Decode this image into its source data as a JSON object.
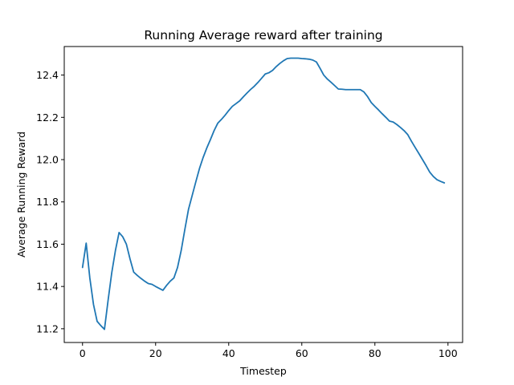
{
  "chart_data": {
    "type": "line",
    "title": "Running Average reward after training",
    "xlabel": "Timestep",
    "ylabel": "Average Running Reward",
    "xlim": [
      -5,
      104
    ],
    "ylim": [
      11.135,
      12.535
    ],
    "xticks": [
      0,
      20,
      40,
      60,
      80,
      100
    ],
    "yticks": [
      11.2,
      11.4,
      11.6,
      11.8,
      12.0,
      12.2,
      12.4
    ],
    "xtick_labels": [
      "0",
      "20",
      "40",
      "60",
      "80",
      "100"
    ],
    "ytick_labels": [
      "11.2",
      "11.4",
      "11.6",
      "11.8",
      "12.0",
      "12.2",
      "12.4"
    ],
    "grid": false,
    "line_color": "#1f77b4",
    "series": [
      {
        "x": [
          0,
          1,
          2,
          3,
          4,
          5,
          6,
          7,
          8,
          9,
          10,
          11,
          12,
          13,
          14,
          15,
          16,
          17,
          18,
          19,
          20,
          21,
          22,
          23,
          24,
          25,
          26,
          27,
          28,
          29,
          30,
          31,
          32,
          33,
          34,
          35,
          36,
          37,
          38,
          39,
          40,
          41,
          42,
          43,
          44,
          45,
          46,
          47,
          48,
          49,
          50,
          51,
          52,
          53,
          54,
          55,
          56,
          57,
          58,
          59,
          60,
          61,
          62,
          63,
          64,
          65,
          66,
          67,
          68,
          69,
          70,
          71,
          72,
          73,
          74,
          75,
          76,
          77,
          78,
          79,
          80,
          81,
          82,
          83,
          84,
          85,
          86,
          87,
          88,
          89,
          90,
          91,
          92,
          93,
          94,
          95,
          96,
          97,
          98,
          99
        ],
        "values": [
          11.49,
          11.605,
          11.44,
          11.315,
          11.235,
          11.215,
          11.197,
          11.335,
          11.465,
          11.57,
          11.655,
          11.635,
          11.6,
          11.53,
          11.468,
          11.452,
          11.438,
          11.425,
          11.414,
          11.41,
          11.4,
          11.391,
          11.382,
          11.405,
          11.425,
          11.44,
          11.49,
          11.57,
          11.67,
          11.765,
          11.83,
          11.895,
          11.958,
          12.01,
          12.055,
          12.095,
          12.137,
          12.172,
          12.19,
          12.21,
          12.232,
          12.252,
          12.265,
          12.278,
          12.297,
          12.315,
          12.332,
          12.347,
          12.365,
          12.385,
          12.405,
          12.411,
          12.422,
          12.44,
          12.455,
          12.468,
          12.478,
          12.48,
          12.48,
          12.48,
          12.478,
          12.477,
          12.475,
          12.471,
          12.462,
          12.432,
          12.4,
          12.381,
          12.366,
          12.35,
          12.334,
          12.333,
          12.331,
          12.331,
          12.331,
          12.331,
          12.331,
          12.32,
          12.298,
          12.27,
          12.252,
          12.235,
          12.217,
          12.2,
          12.182,
          12.178,
          12.166,
          12.152,
          12.137,
          12.118,
          12.087,
          12.058,
          12.03,
          12.001,
          11.972,
          11.941,
          11.92,
          11.905,
          11.897,
          11.89
        ]
      }
    ]
  }
}
